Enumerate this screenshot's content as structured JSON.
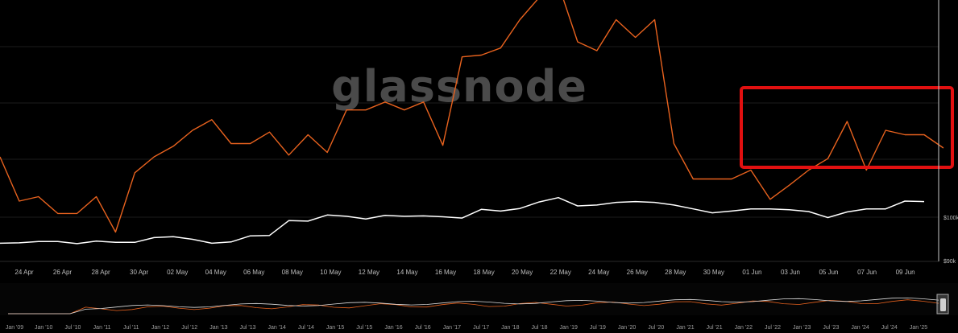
{
  "watermark": "glassnode",
  "colors": {
    "background": "#000000",
    "orange_series": "#e8621e",
    "white_series": "#ffffff",
    "highlight_box": "#e11010",
    "grid": "#1c1c1c",
    "axis": "#c8c8c8"
  },
  "chart_data": {
    "type": "line",
    "x_tick_labels": [
      "24 Apr",
      "26 Apr",
      "28 Apr",
      "30 Apr",
      "02 May",
      "04 May",
      "06 May",
      "08 May",
      "10 May",
      "12 May",
      "14 May",
      "16 May",
      "18 May",
      "20 May",
      "22 May",
      "24 May",
      "26 May",
      "28 May",
      "30 May",
      "01 Jun",
      "03 Jun",
      "05 Jun",
      "07 Jun",
      "09 Jun"
    ],
    "y_tick_labels": [
      "$100k",
      "$90k"
    ],
    "y_right": {
      "min": 90000,
      "max": 130000,
      "scale": "linear"
    },
    "y_left": {
      "min": 0,
      "max": 300,
      "scale": "linear"
    },
    "series": [
      {
        "color": "#ffffff",
        "axis": "right",
        "values": [
          94000,
          94100,
          94400,
          94400,
          93900,
          94500,
          94200,
          94200,
          95300,
          95500,
          94900,
          94000,
          94300,
          95700,
          95800,
          99200,
          99100,
          100500,
          100200,
          99600,
          100400,
          100200,
          100300,
          100100,
          99800,
          101800,
          101400,
          102000,
          103500,
          104500,
          102600,
          102800,
          103400,
          103600,
          103400,
          102800,
          101900,
          101000,
          101400,
          101900,
          101900,
          101700,
          101300,
          99900,
          101200,
          101900,
          101900,
          103700,
          103600
        ]
      },
      {
        "color": "#e8621e",
        "axis": "left",
        "values": [
          150,
          100,
          105,
          86,
          86,
          105,
          65,
          132,
          150,
          162,
          180,
          192,
          165,
          165,
          178,
          152,
          175,
          155,
          203,
          203,
          212,
          203,
          212,
          163,
          263,
          265,
          273,
          305,
          330,
          345,
          280,
          270,
          305,
          285,
          305,
          165,
          125,
          125,
          125,
          135,
          102,
          118,
          135,
          148,
          190,
          135,
          180,
          175,
          175,
          160
        ]
      }
    ],
    "navigator": {
      "tick_labels": [
        "Jan '09",
        "Jan '10",
        "Jul '10",
        "Jan '11",
        "Jul '11",
        "Jan '12",
        "Jul '12",
        "Jan '13",
        "Jul '13",
        "Jan '14",
        "Jul '14",
        "Jan '15",
        "Jul '15",
        "Jan '16",
        "Jul '16",
        "Jan '17",
        "Jul '17",
        "Jan '18",
        "Jul '18",
        "Jan '19",
        "Jul '19",
        "Jan '20",
        "Jul '20",
        "Jan '21",
        "Jul '21",
        "Jan '22",
        "Jul '22",
        "Jan '23",
        "Jul '23",
        "Jan '24",
        "Jul '24",
        "Jan '25"
      ]
    }
  }
}
